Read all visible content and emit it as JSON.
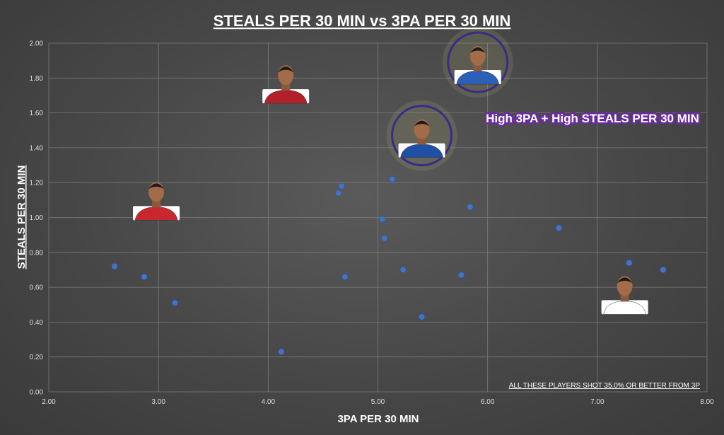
{
  "chart_data": {
    "type": "scatter",
    "title": "STEALS PER 30 MIN vs 3PA PER 30 MIN",
    "xlabel": "3PA PER 30 MIN",
    "ylabel": "STEALS PER 30 MIN",
    "xlim": [
      2.0,
      8.0
    ],
    "ylim": [
      0.0,
      2.0
    ],
    "xticks": [
      "2.00",
      "3.00",
      "4.00",
      "5.00",
      "6.00",
      "7.00",
      "8.00"
    ],
    "yticks": [
      "0.00",
      "0.20",
      "0.40",
      "0.60",
      "0.80",
      "1.00",
      "1.20",
      "1.40",
      "1.60",
      "1.80",
      "2.00"
    ],
    "grid": true,
    "marker_color": "#4472c4",
    "points": [
      {
        "x": 2.6,
        "y": 0.72
      },
      {
        "x": 2.87,
        "y": 0.66
      },
      {
        "x": 3.15,
        "y": 0.51
      },
      {
        "x": 4.12,
        "y": 0.23
      },
      {
        "x": 4.64,
        "y": 1.14
      },
      {
        "x": 4.67,
        "y": 1.18
      },
      {
        "x": 4.7,
        "y": 0.66
      },
      {
        "x": 5.04,
        "y": 0.99
      },
      {
        "x": 5.06,
        "y": 0.88
      },
      {
        "x": 5.13,
        "y": 1.22
      },
      {
        "x": 5.23,
        "y": 0.7
      },
      {
        "x": 5.4,
        "y": 0.43
      },
      {
        "x": 5.76,
        "y": 0.67
      },
      {
        "x": 5.84,
        "y": 1.06
      },
      {
        "x": 6.65,
        "y": 0.94
      },
      {
        "x": 7.29,
        "y": 0.74
      },
      {
        "x": 7.6,
        "y": 0.7
      }
    ],
    "player_photos": [
      {
        "x": 2.98,
        "y": 1.09,
        "jersey": "#c8282d",
        "highlighted": false
      },
      {
        "x": 4.16,
        "y": 1.76,
        "jersey": "#b3202a",
        "highlighted": false
      },
      {
        "x": 5.4,
        "y": 1.45,
        "jersey": "#1f4fa6",
        "highlighted": true
      },
      {
        "x": 5.91,
        "y": 1.87,
        "jersey": "#2c5fb8",
        "highlighted": true
      },
      {
        "x": 7.25,
        "y": 0.55,
        "jersey": "#ffffff",
        "highlighted": false
      }
    ],
    "highlight_color": "#3b2a8a",
    "annotations": {
      "callout": "High 3PA + High STEALS PER 30 MIN",
      "callout_color": "#6a2ca0",
      "note": "ALL THESE PLAYERS SHOT 35.0% OR BETTER FROM 3P"
    }
  }
}
